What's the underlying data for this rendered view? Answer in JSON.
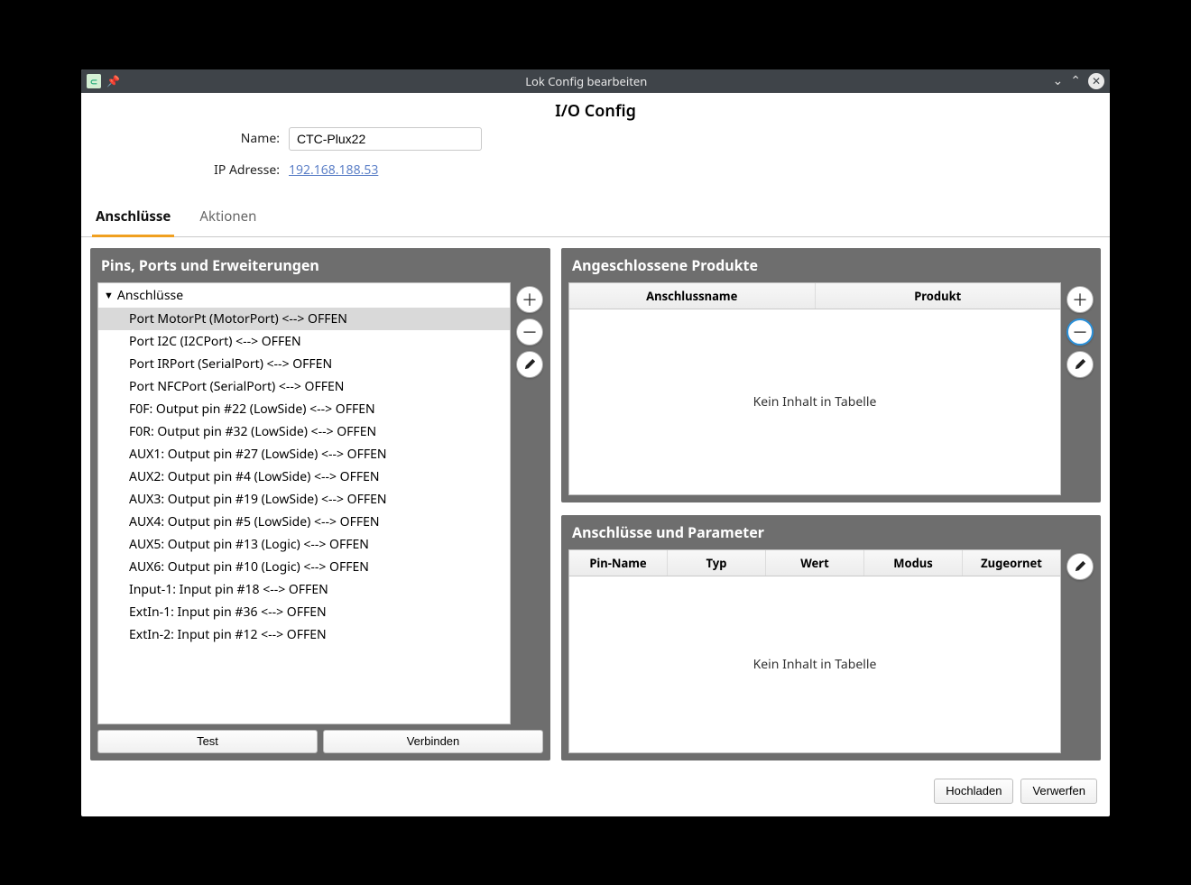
{
  "window": {
    "title": "Lok Config bearbeiten"
  },
  "page": {
    "title": "I/O Config"
  },
  "form": {
    "name_label": "Name:",
    "name_value": "CTC-Plux22",
    "ip_label": "IP Adresse:",
    "ip_value": "192.168.188.53"
  },
  "tabs": {
    "connections": "Anschlüsse",
    "actions": "Aktionen"
  },
  "left_panel": {
    "title": "Pins, Ports und Erweiterungen",
    "root_label": "Anschlüsse",
    "items": [
      "Port MotorPt (MotorPort) <--> OFFEN",
      "Port I2C (I2CPort) <--> OFFEN",
      "Port IRPort (SerialPort) <--> OFFEN",
      "Port NFCPort (SerialPort) <--> OFFEN",
      "F0F: Output pin #22 (LowSide) <--> OFFEN",
      "F0R: Output pin #32 (LowSide) <--> OFFEN",
      "AUX1: Output pin #27 (LowSide) <--> OFFEN",
      "AUX2: Output pin #4 (LowSide) <--> OFFEN",
      "AUX3: Output pin #19 (LowSide) <--> OFFEN",
      "AUX4: Output pin #5 (LowSide) <--> OFFEN",
      "AUX5: Output pin #13 (Logic) <--> OFFEN",
      "AUX6: Output pin #10 (Logic) <--> OFFEN",
      "Input-1: Input pin #18 <--> OFFEN",
      "ExtIn-1: Input pin #36 <--> OFFEN",
      "ExtIn-2: Input pin #12 <--> OFFEN"
    ],
    "selected_index": 0,
    "test_button": "Test",
    "connect_button": "Verbinden"
  },
  "products_panel": {
    "title": "Angeschlossene Produkte",
    "col_name": "Anschlussname",
    "col_product": "Produkt",
    "empty": "Kein Inhalt in Tabelle"
  },
  "params_panel": {
    "title": "Anschlüsse und Parameter",
    "col_pin": "Pin-Name",
    "col_type": "Typ",
    "col_value": "Wert",
    "col_mode": "Modus",
    "col_assigned": "Zugeornet",
    "empty": "Kein Inhalt in Tabelle"
  },
  "footer": {
    "upload": "Hochladen",
    "discard": "Verwerfen"
  },
  "colors": {
    "titlebar_bg": "#3f4449",
    "panel_bg": "#6e6e6e",
    "accent": "#f0a020",
    "link": "#5b7fc7",
    "selection": "#d9d9d9",
    "btn_highlight": "#2b90d9"
  }
}
